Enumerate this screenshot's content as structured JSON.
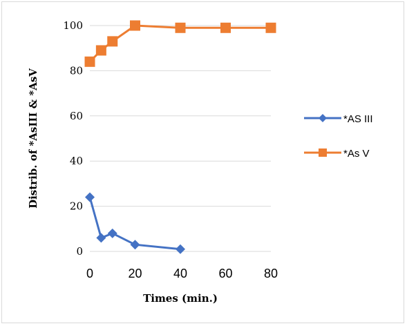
{
  "chart_data": {
    "type": "line",
    "xlabel": "Times (min.)",
    "ylabel": "Distrib. of *AsIII & *AsV",
    "xlim": [
      0,
      80
    ],
    "ylim": [
      0,
      100
    ],
    "x_ticks": [
      "0",
      "20",
      "40",
      "60",
      "80"
    ],
    "y_ticks": [
      "0",
      "20",
      "40",
      "60",
      "80",
      "100"
    ],
    "grid": "horizontal",
    "legend_position": "right",
    "series": [
      {
        "name": "*AS III",
        "color": "#4472C4",
        "marker": "diamond",
        "x": [
          0,
          5,
          10,
          20,
          40
        ],
        "y": [
          24,
          6,
          8,
          3,
          1
        ]
      },
      {
        "name": "*As V",
        "color": "#ED7D31",
        "marker": "square",
        "x": [
          0,
          5,
          10,
          20,
          40,
          60,
          80
        ],
        "y": [
          84,
          89,
          93,
          100,
          99,
          99,
          99
        ]
      }
    ]
  }
}
